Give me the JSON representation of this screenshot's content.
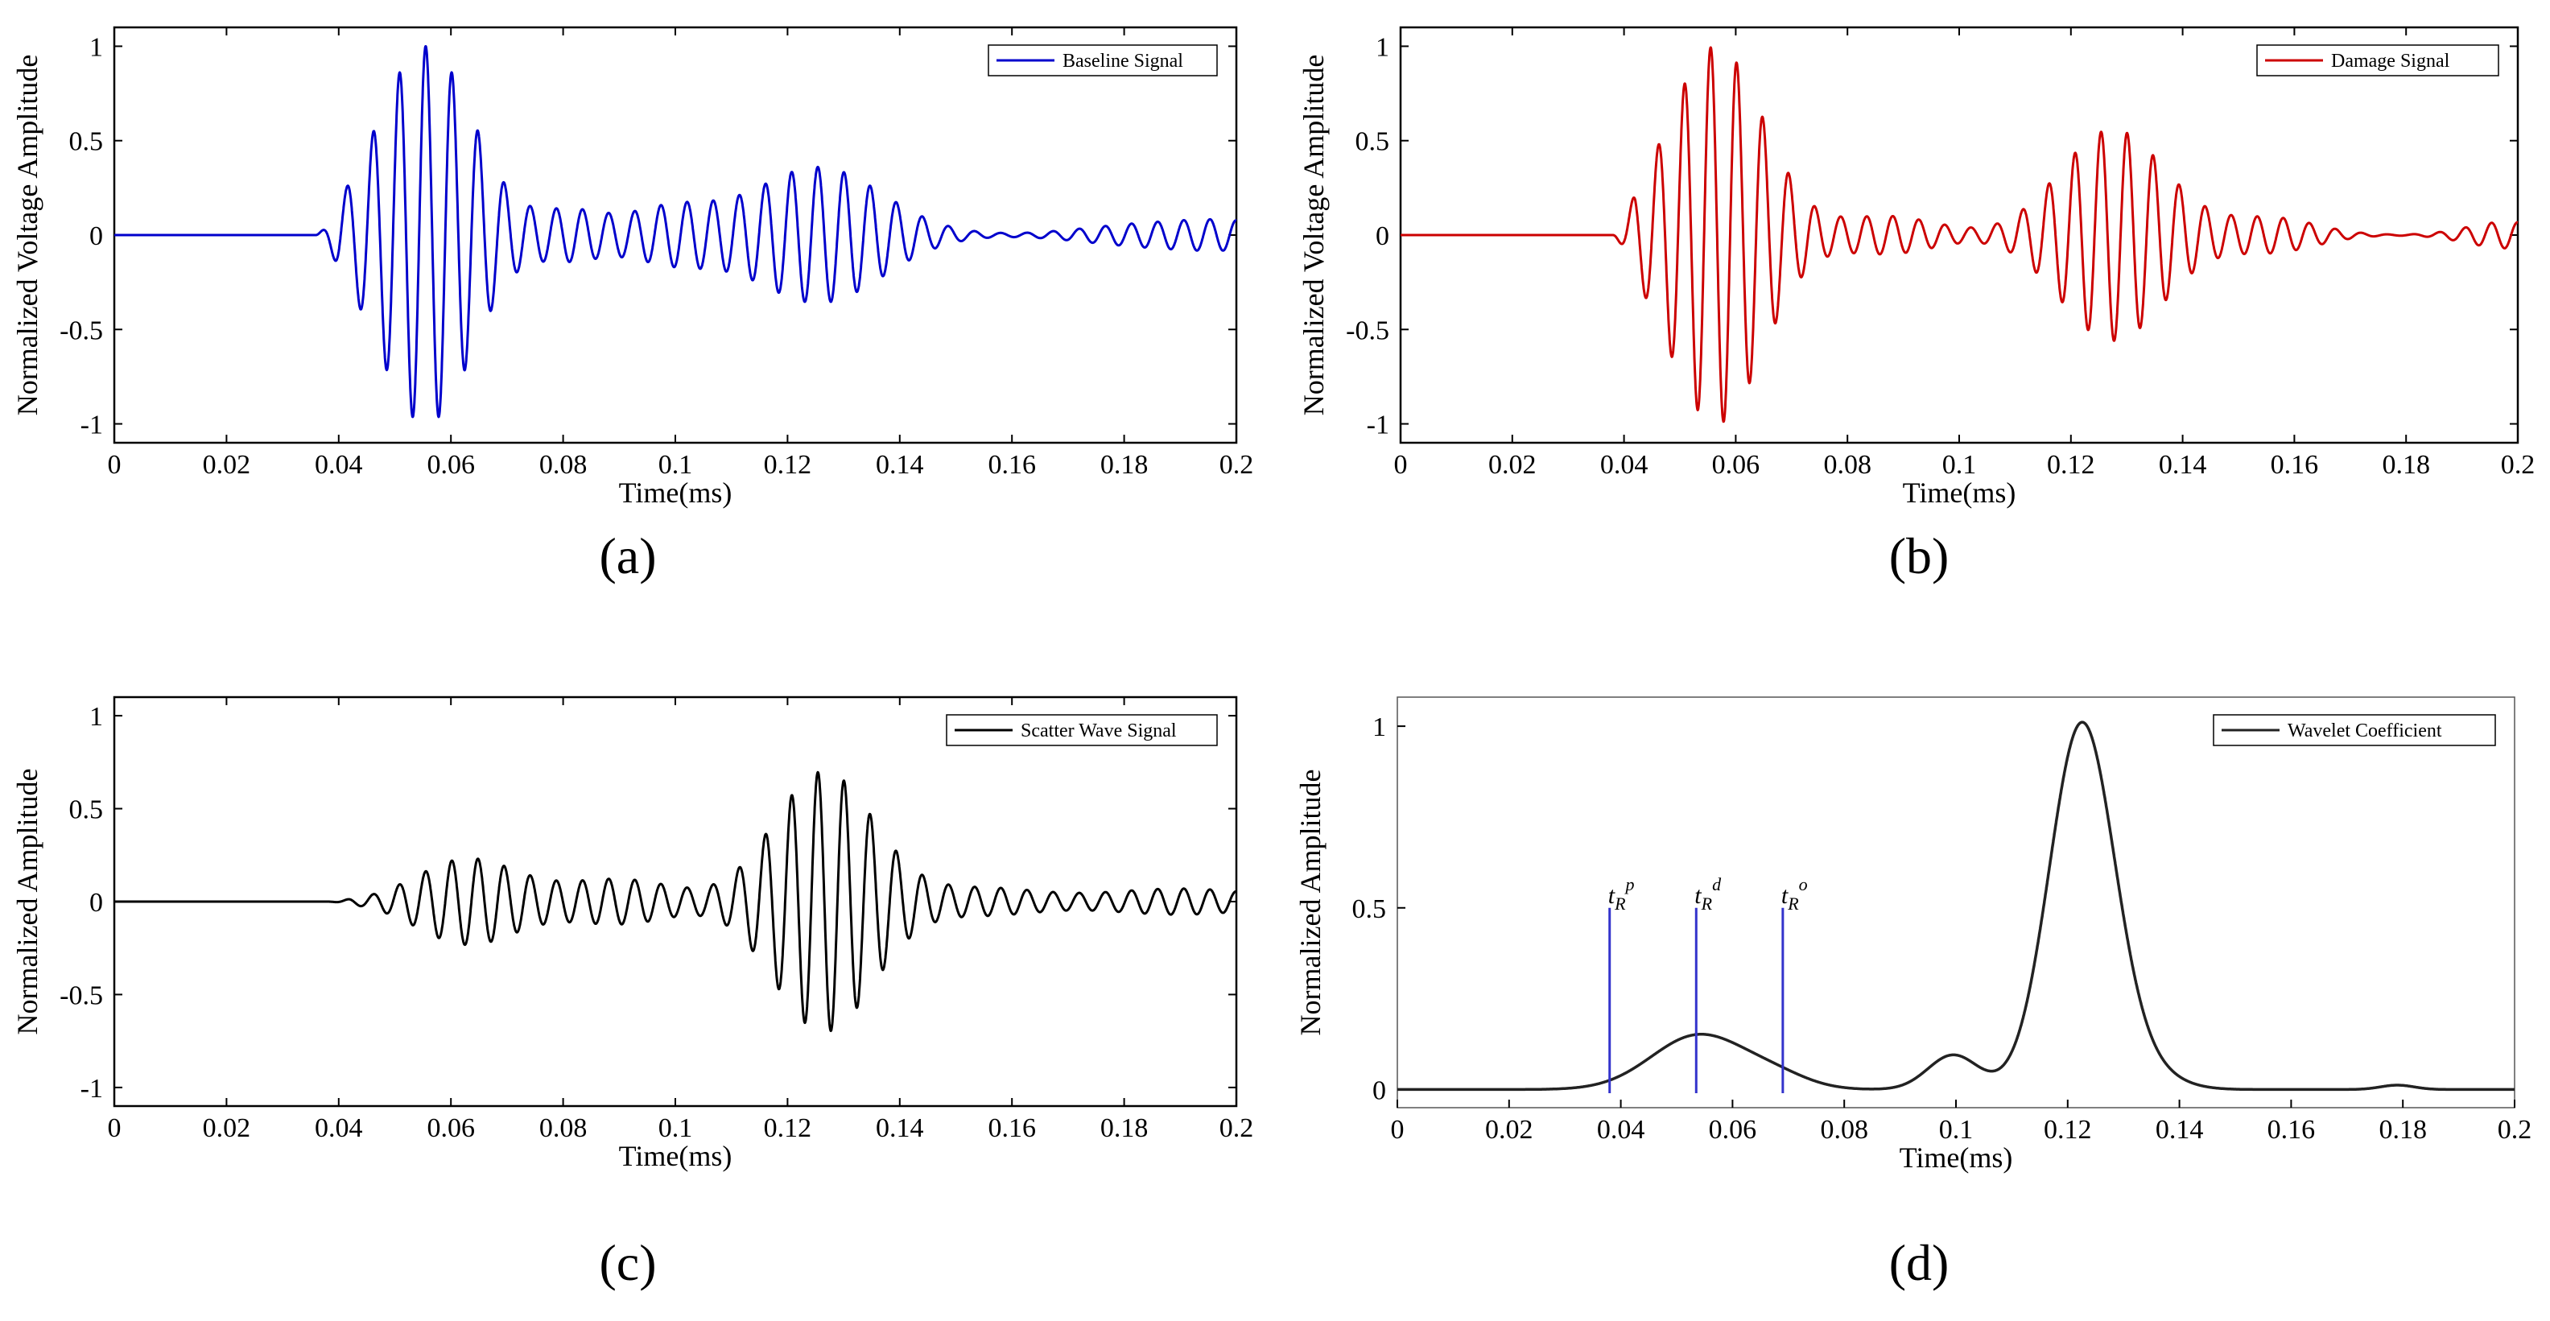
{
  "chart_data": [
    {
      "id": "a",
      "type": "line",
      "panel_label": "(a)",
      "xlabel": "Time(ms)",
      "ylabel": "Normalized Voltage Amplitude",
      "xlim": [
        0,
        0.2
      ],
      "ylim": [
        -1.1,
        1.1
      ],
      "xticks": [
        0,
        0.02,
        0.04,
        0.06,
        0.08,
        0.1,
        0.12,
        0.14,
        0.16,
        0.18,
        0.2
      ],
      "xtick_labels": [
        "0",
        "0.02",
        "0.04",
        "0.06",
        "0.08",
        "0.1",
        "0.12",
        "0.14",
        "0.16",
        "0.18",
        "0.2"
      ],
      "yticks": [
        -1,
        -0.5,
        0,
        0.5,
        1
      ],
      "ytick_labels": [
        "-1",
        "-0.5",
        "0",
        "0.5",
        "1"
      ],
      "legend": "Baseline Signal",
      "legend_position": "top-right",
      "color": "#0000cc",
      "signal": {
        "carrier_period_ms": 0.00466,
        "packets": [
          {
            "center": 0.0555,
            "amplitude": 1.0,
            "width": 0.0085
          },
          {
            "center": 0.081,
            "amplitude": 0.12,
            "width": 0.006
          },
          {
            "center": 0.099,
            "amplitude": 0.14,
            "width": 0.008
          },
          {
            "center": 0.1255,
            "amplitude": 0.36,
            "width": 0.0115
          },
          {
            "center": 0.185,
            "amplitude": 0.06,
            "width": 0.012
          },
          {
            "center": 0.2,
            "amplitude": 0.05,
            "width": 0.008
          }
        ],
        "onset_ms": 0.036
      }
    },
    {
      "id": "b",
      "type": "line",
      "panel_label": "(b)",
      "xlabel": "Time(ms)",
      "ylabel": "Normalized Voltage Amplitude",
      "xlim": [
        0,
        0.2
      ],
      "ylim": [
        -1.1,
        1.1
      ],
      "xticks": [
        0,
        0.02,
        0.04,
        0.06,
        0.08,
        0.1,
        0.12,
        0.14,
        0.16,
        0.18,
        0.2
      ],
      "xtick_labels": [
        "0",
        "0.02",
        "0.04",
        "0.06",
        "0.08",
        "0.1",
        "0.12",
        "0.14",
        "0.16",
        "0.18",
        "0.2"
      ],
      "yticks": [
        -1,
        -0.5,
        0,
        0.5,
        1
      ],
      "ytick_labels": [
        "-1",
        "-0.5",
        "0",
        "0.5",
        "1"
      ],
      "legend": "Damage Signal",
      "legend_position": "top-right",
      "color": "#cc0000",
      "signal": {
        "carrier_period_ms": 0.00466,
        "packets": [
          {
            "center": 0.0565,
            "amplitude": 1.0,
            "width": 0.0085
          },
          {
            "center": 0.087,
            "amplitude": 0.1,
            "width": 0.009
          },
          {
            "center": 0.1275,
            "amplitude": 0.56,
            "width": 0.0095
          },
          {
            "center": 0.156,
            "amplitude": 0.09,
            "width": 0.008
          },
          {
            "center": 0.198,
            "amplitude": 0.07,
            "width": 0.007
          }
        ],
        "onset_ms": 0.038
      }
    },
    {
      "id": "c",
      "type": "line",
      "panel_label": "(c)",
      "xlabel": "Time(ms)",
      "ylabel": "Normalized Amplitude",
      "xlim": [
        0,
        0.2
      ],
      "ylim": [
        -1.1,
        1.1
      ],
      "xticks": [
        0,
        0.02,
        0.04,
        0.06,
        0.08,
        0.1,
        0.12,
        0.14,
        0.16,
        0.18,
        0.2
      ],
      "xtick_labels": [
        "0",
        "0.02",
        "0.04",
        "0.06",
        "0.08",
        "0.1",
        "0.12",
        "0.14",
        "0.16",
        "0.18",
        "0.2"
      ],
      "yticks": [
        -1,
        -0.5,
        0,
        0.5,
        1
      ],
      "ytick_labels": [
        "-1",
        "-0.5",
        "0",
        "0.5",
        "1"
      ],
      "legend": "Scatter Wave Signal",
      "legend_position": "top-right",
      "color": "#000000",
      "signal": {
        "carrier_period_ms": 0.00466,
        "packets": [
          {
            "center": 0.063,
            "amplitude": 0.23,
            "width": 0.009
          },
          {
            "center": 0.09,
            "amplitude": 0.12,
            "width": 0.01
          },
          {
            "center": 0.1265,
            "amplitude": 0.7,
            "width": 0.009
          },
          {
            "center": 0.155,
            "amplitude": 0.07,
            "width": 0.01
          },
          {
            "center": 0.19,
            "amplitude": 0.07,
            "width": 0.014
          }
        ],
        "onset_ms": 0.038
      }
    },
    {
      "id": "d",
      "type": "line",
      "panel_label": "(d)",
      "xlabel": "Time(ms)",
      "ylabel": "Normalized Amplitude",
      "xlim": [
        0,
        0.2
      ],
      "ylim": [
        -0.05,
        1.08
      ],
      "xticks": [
        0,
        0.02,
        0.04,
        0.06,
        0.08,
        0.1,
        0.12,
        0.14,
        0.16,
        0.18,
        0.2
      ],
      "xtick_labels": [
        "0",
        "0.02",
        "0.04",
        "0.06",
        "0.08",
        "0.1",
        "0.12",
        "0.14",
        "0.16",
        "0.18",
        "0.2"
      ],
      "yticks": [
        0,
        0.5,
        1
      ],
      "ytick_labels": [
        "0",
        "0.5",
        "1"
      ],
      "legend": "Wavelet Coefficient",
      "legend_position": "top-right",
      "color": "#222222",
      "marker_color": "#3333cc",
      "curve": {
        "bumps": [
          {
            "center": 0.054,
            "amplitude": 0.15,
            "width": 0.0085
          },
          {
            "center": 0.068,
            "amplitude": 0.03,
            "width": 0.006
          },
          {
            "center": 0.0995,
            "amplitude": 0.095,
            "width": 0.0045
          },
          {
            "center": 0.1225,
            "amplitude": 1.0,
            "width": 0.0058
          },
          {
            "center": 0.133,
            "amplitude": 0.05,
            "width": 0.006
          },
          {
            "center": 0.179,
            "amplitude": 0.012,
            "width": 0.003
          }
        ]
      },
      "markers": [
        {
          "x": 0.038,
          "y_top": 0.5,
          "symbol": "t",
          "sub": "R",
          "sup": "p"
        },
        {
          "x": 0.0535,
          "y_top": 0.5,
          "symbol": "t",
          "sub": "R",
          "sup": "d"
        },
        {
          "x": 0.069,
          "y_top": 0.5,
          "symbol": "t",
          "sub": "R",
          "sup": "o"
        }
      ]
    }
  ]
}
